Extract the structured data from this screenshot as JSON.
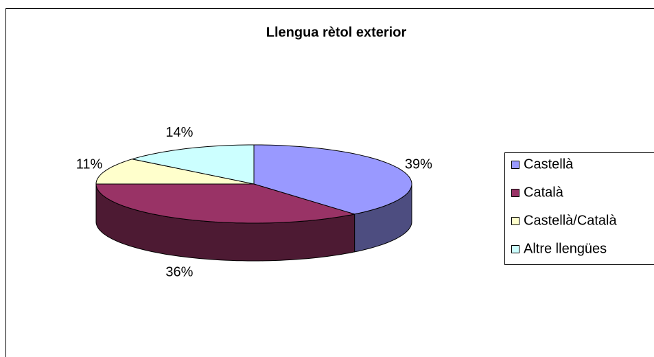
{
  "chart_data": {
    "type": "pie",
    "title": "Llengua rètol exterior",
    "categories": [
      "Castellà",
      "Català",
      "Castellà/Català",
      "Altre llengües"
    ],
    "values": [
      39,
      36,
      11,
      14
    ],
    "value_labels": [
      "39%",
      "36%",
      "11%",
      "14%"
    ],
    "colors": [
      "#9999ff",
      "#993366",
      "#ffffcc",
      "#ccffff"
    ],
    "legend": "right"
  }
}
